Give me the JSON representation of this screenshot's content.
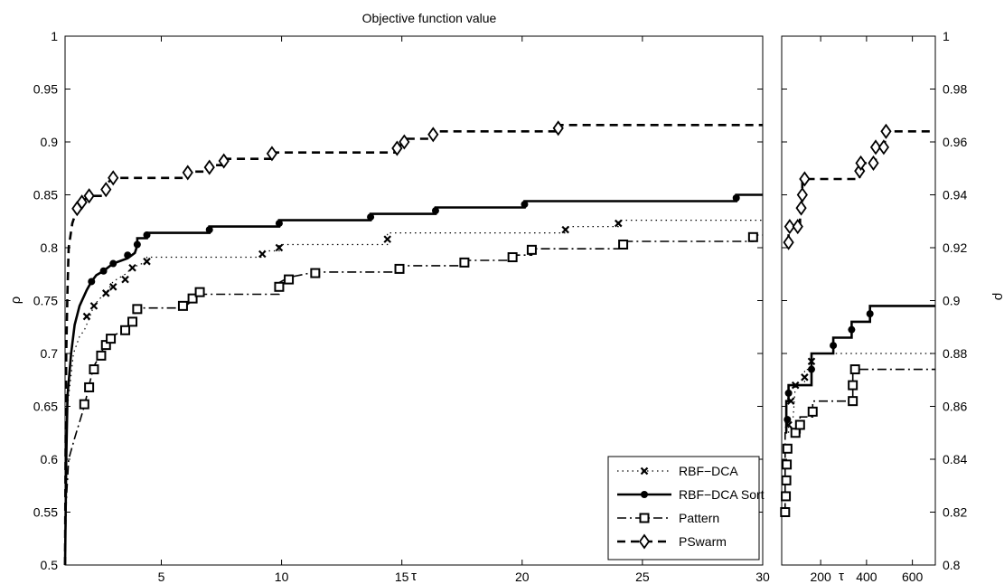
{
  "chart_data": [
    {
      "type": "line",
      "title": "Objective function value",
      "xlabel": "τ",
      "ylabel": "ρ",
      "xlim": [
        1,
        30
      ],
      "ylim": [
        0.5,
        1
      ],
      "xticks": [
        "5",
        "10",
        "15",
        "20",
        "25",
        "30"
      ],
      "yticks": [
        "0.5",
        "0.55",
        "0.6",
        "0.65",
        "0.7",
        "0.75",
        "0.8",
        "0.85",
        "0.9",
        "0.95",
        "1"
      ],
      "legend": {
        "position": "bottom-right",
        "entries": [
          "RBF−DCA",
          "RBF−DCA Sort",
          "Pattern",
          "PSwarm"
        ]
      },
      "series": [
        {
          "name": "RBF−DCA",
          "points": [
            [
              1,
              0.5
            ],
            [
              1.05,
              0.6
            ],
            [
              1.1,
              0.65
            ],
            [
              1.25,
              0.68
            ],
            [
              1.35,
              0.7
            ],
            [
              1.6,
              0.716
            ],
            [
              1.8,
              0.722
            ],
            [
              2.0,
              0.733
            ],
            [
              2.2,
              0.745
            ],
            [
              2.4,
              0.751
            ],
            [
              2.7,
              0.757
            ],
            [
              3.0,
              0.768
            ],
            [
              3.5,
              0.775
            ],
            [
              3.8,
              0.781
            ],
            [
              4.4,
              0.787
            ],
            [
              4.4,
              0.791
            ],
            [
              9.2,
              0.791
            ],
            [
              9.2,
              0.797
            ],
            [
              9.9,
              0.797
            ],
            [
              9.9,
              0.803
            ],
            [
              14.4,
              0.803
            ],
            [
              14.4,
              0.814
            ],
            [
              21.8,
              0.814
            ],
            [
              21.8,
              0.82
            ],
            [
              24.0,
              0.82
            ],
            [
              24.0,
              0.826
            ],
            [
              30,
              0.826
            ]
          ],
          "markers": [
            [
              1.9,
              0.735
            ],
            [
              2.2,
              0.745
            ],
            [
              2.7,
              0.757
            ],
            [
              3.0,
              0.763
            ],
            [
              3.5,
              0.77
            ],
            [
              3.8,
              0.781
            ],
            [
              4.4,
              0.787
            ],
            [
              9.2,
              0.794
            ],
            [
              9.9,
              0.8
            ],
            [
              14.4,
              0.808
            ],
            [
              21.8,
              0.817
            ],
            [
              24.0,
              0.823
            ]
          ]
        },
        {
          "name": "RBF−DCA Sort",
          "points": [
            [
              1,
              0.5
            ],
            [
              1.05,
              0.6
            ],
            [
              1.1,
              0.66
            ],
            [
              1.25,
              0.7
            ],
            [
              1.4,
              0.727
            ],
            [
              1.6,
              0.745
            ],
            [
              1.9,
              0.76
            ],
            [
              2.1,
              0.768
            ],
            [
              2.3,
              0.774
            ],
            [
              2.6,
              0.778
            ],
            [
              3.0,
              0.785
            ],
            [
              3.6,
              0.79
            ],
            [
              3.9,
              0.795
            ],
            [
              4.0,
              0.802
            ],
            [
              4.0,
              0.809
            ],
            [
              4.4,
              0.809
            ],
            [
              4.4,
              0.814
            ],
            [
              7.0,
              0.814
            ],
            [
              7.0,
              0.82
            ],
            [
              9.9,
              0.82
            ],
            [
              9.9,
              0.826
            ],
            [
              13.7,
              0.826
            ],
            [
              13.7,
              0.832
            ],
            [
              16.4,
              0.832
            ],
            [
              16.4,
              0.838
            ],
            [
              20.1,
              0.838
            ],
            [
              20.1,
              0.844
            ],
            [
              28.9,
              0.844
            ],
            [
              28.9,
              0.85
            ],
            [
              30,
              0.85
            ]
          ],
          "markers": [
            [
              2.1,
              0.768
            ],
            [
              2.6,
              0.778
            ],
            [
              3.0,
              0.785
            ],
            [
              3.6,
              0.793
            ],
            [
              4.0,
              0.803
            ],
            [
              4.4,
              0.812
            ],
            [
              7.0,
              0.817
            ],
            [
              9.9,
              0.823
            ],
            [
              13.7,
              0.829
            ],
            [
              16.4,
              0.835
            ],
            [
              20.1,
              0.841
            ],
            [
              28.9,
              0.847
            ]
          ]
        },
        {
          "name": "Pattern",
          "points": [
            [
              1,
              0.5
            ],
            [
              1.05,
              0.56
            ],
            [
              1.15,
              0.6
            ],
            [
              1.4,
              0.62
            ],
            [
              1.6,
              0.635
            ],
            [
              1.8,
              0.65
            ],
            [
              2.0,
              0.67
            ],
            [
              2.2,
              0.688
            ],
            [
              2.5,
              0.7
            ],
            [
              2.7,
              0.711
            ],
            [
              2.9,
              0.716
            ],
            [
              3.5,
              0.722
            ],
            [
              3.8,
              0.733
            ],
            [
              4.0,
              0.743
            ],
            [
              5.9,
              0.743
            ],
            [
              6.3,
              0.75
            ],
            [
              6.6,
              0.756
            ],
            [
              9.9,
              0.756
            ],
            [
              9.9,
              0.767
            ],
            [
              10.3,
              0.772
            ],
            [
              11.4,
              0.777
            ],
            [
              14.9,
              0.777
            ],
            [
              14.9,
              0.783
            ],
            [
              17.6,
              0.783
            ],
            [
              17.6,
              0.788
            ],
            [
              19.6,
              0.788
            ],
            [
              19.6,
              0.793
            ],
            [
              20.4,
              0.793
            ],
            [
              20.4,
              0.799
            ],
            [
              24.2,
              0.799
            ],
            [
              24.2,
              0.806
            ],
            [
              29.6,
              0.806
            ],
            [
              29.6,
              0.812
            ],
            [
              30,
              0.812
            ]
          ],
          "markers": [
            [
              1.8,
              0.652
            ],
            [
              2.0,
              0.668
            ],
            [
              2.2,
              0.685
            ],
            [
              2.5,
              0.698
            ],
            [
              2.7,
              0.708
            ],
            [
              2.9,
              0.714
            ],
            [
              3.5,
              0.722
            ],
            [
              3.8,
              0.73
            ],
            [
              4.0,
              0.742
            ],
            [
              5.9,
              0.745
            ],
            [
              6.3,
              0.752
            ],
            [
              6.6,
              0.758
            ],
            [
              9.9,
              0.763
            ],
            [
              10.3,
              0.77
            ],
            [
              11.4,
              0.776
            ],
            [
              14.9,
              0.78
            ],
            [
              17.6,
              0.786
            ],
            [
              19.6,
              0.791
            ],
            [
              20.4,
              0.798
            ],
            [
              24.2,
              0.803
            ],
            [
              29.6,
              0.81
            ]
          ]
        },
        {
          "name": "PSwarm",
          "points": [
            [
              1,
              0.5
            ],
            [
              1.02,
              0.6
            ],
            [
              1.05,
              0.7
            ],
            [
              1.1,
              0.76
            ],
            [
              1.15,
              0.8
            ],
            [
              1.3,
              0.823
            ],
            [
              1.5,
              0.837
            ],
            [
              1.7,
              0.843
            ],
            [
              2.0,
              0.849
            ],
            [
              2.7,
              0.849
            ],
            [
              2.7,
              0.86
            ],
            [
              3.0,
              0.866
            ],
            [
              6.1,
              0.866
            ],
            [
              6.1,
              0.872
            ],
            [
              7.0,
              0.872
            ],
            [
              7.0,
              0.878
            ],
            [
              7.6,
              0.878
            ],
            [
              7.6,
              0.884
            ],
            [
              9.6,
              0.884
            ],
            [
              9.6,
              0.89
            ],
            [
              14.8,
              0.89
            ],
            [
              14.8,
              0.897
            ],
            [
              15.1,
              0.897
            ],
            [
              15.1,
              0.903
            ],
            [
              16.3,
              0.903
            ],
            [
              16.3,
              0.91
            ],
            [
              21.5,
              0.91
            ],
            [
              21.5,
              0.916
            ],
            [
              30,
              0.916
            ]
          ],
          "markers": [
            [
              1.5,
              0.837
            ],
            [
              1.7,
              0.843
            ],
            [
              2.0,
              0.849
            ],
            [
              2.7,
              0.855
            ],
            [
              3.0,
              0.866
            ],
            [
              6.1,
              0.871
            ],
            [
              7.0,
              0.876
            ],
            [
              7.6,
              0.882
            ],
            [
              9.6,
              0.889
            ],
            [
              14.8,
              0.894
            ],
            [
              15.1,
              0.9
            ],
            [
              16.3,
              0.907
            ],
            [
              21.5,
              0.913
            ]
          ]
        }
      ]
    },
    {
      "type": "line",
      "xlabel": "τ",
      "ylabel": "ρ",
      "xlim": [
        30,
        700
      ],
      "ylim": [
        0.8,
        1
      ],
      "xticks": [
        "200",
        "400",
        "600"
      ],
      "yticks": [
        "0.8",
        "0.82",
        "0.84",
        "0.86",
        "0.88",
        "0.9",
        "0.92",
        "0.94",
        "0.96",
        "0.98",
        "1"
      ],
      "series": [
        {
          "name": "RBF−DCA",
          "points": [
            [
              60,
              0.85
            ],
            [
              60,
              0.856
            ],
            [
              80,
              0.856
            ],
            [
              90,
              0.868
            ],
            [
              130,
              0.868
            ],
            [
              130,
              0.874
            ],
            [
              160,
              0.874
            ],
            [
              160,
              0.88
            ],
            [
              700,
              0.88
            ]
          ],
          "markers": [
            [
              60,
              0.853
            ],
            [
              70,
              0.862
            ],
            [
              90,
              0.868
            ],
            [
              130,
              0.871
            ],
            [
              160,
              0.877
            ]
          ]
        },
        {
          "name": "RBF−DCA Sort",
          "points": [
            [
              50,
              0.85
            ],
            [
              50,
              0.862
            ],
            [
              60,
              0.862
            ],
            [
              60,
              0.868
            ],
            [
              160,
              0.868
            ],
            [
              160,
              0.88
            ],
            [
              255,
              0.88
            ],
            [
              255,
              0.886
            ],
            [
              335,
              0.886
            ],
            [
              335,
              0.892
            ],
            [
              415,
              0.892
            ],
            [
              415,
              0.898
            ],
            [
              700,
              0.898
            ]
          ],
          "markers": [
            [
              55,
              0.855
            ],
            [
              60,
              0.865
            ],
            [
              160,
              0.874
            ],
            [
              255,
              0.883
            ],
            [
              335,
              0.889
            ],
            [
              415,
              0.895
            ]
          ]
        },
        {
          "name": "Pattern",
          "points": [
            [
              45,
              0.82
            ],
            [
              45,
              0.85
            ],
            [
              110,
              0.85
            ],
            [
              110,
              0.856
            ],
            [
              165,
              0.856
            ],
            [
              165,
              0.862
            ],
            [
              340,
              0.862
            ],
            [
              340,
              0.874
            ],
            [
              700,
              0.874
            ]
          ],
          "markers": [
            [
              45,
              0.82
            ],
            [
              48,
              0.826
            ],
            [
              50,
              0.832
            ],
            [
              52,
              0.838
            ],
            [
              55,
              0.844
            ],
            [
              90,
              0.85
            ],
            [
              110,
              0.853
            ],
            [
              165,
              0.858
            ],
            [
              340,
              0.862
            ],
            [
              340,
              0.868
            ],
            [
              350,
              0.874
            ]
          ]
        },
        {
          "name": "PSwarm",
          "points": [
            [
              60,
              0.922
            ],
            [
              60,
              0.928
            ],
            [
              110,
              0.928
            ],
            [
              110,
              0.934
            ],
            [
              120,
              0.934
            ],
            [
              120,
              0.946
            ],
            [
              370,
              0.946
            ],
            [
              370,
              0.952
            ],
            [
              440,
              0.952
            ],
            [
              440,
              0.958
            ],
            [
              480,
              0.958
            ],
            [
              480,
              0.964
            ],
            [
              700,
              0.964
            ]
          ],
          "markers": [
            [
              60,
              0.922
            ],
            [
              65,
              0.928
            ],
            [
              100,
              0.928
            ],
            [
              115,
              0.935
            ],
            [
              120,
              0.94
            ],
            [
              130,
              0.946
            ],
            [
              370,
              0.949
            ],
            [
              375,
              0.952
            ],
            [
              430,
              0.952
            ],
            [
              440,
              0.958
            ],
            [
              475,
              0.958
            ],
            [
              485,
              0.964
            ]
          ]
        }
      ]
    }
  ]
}
